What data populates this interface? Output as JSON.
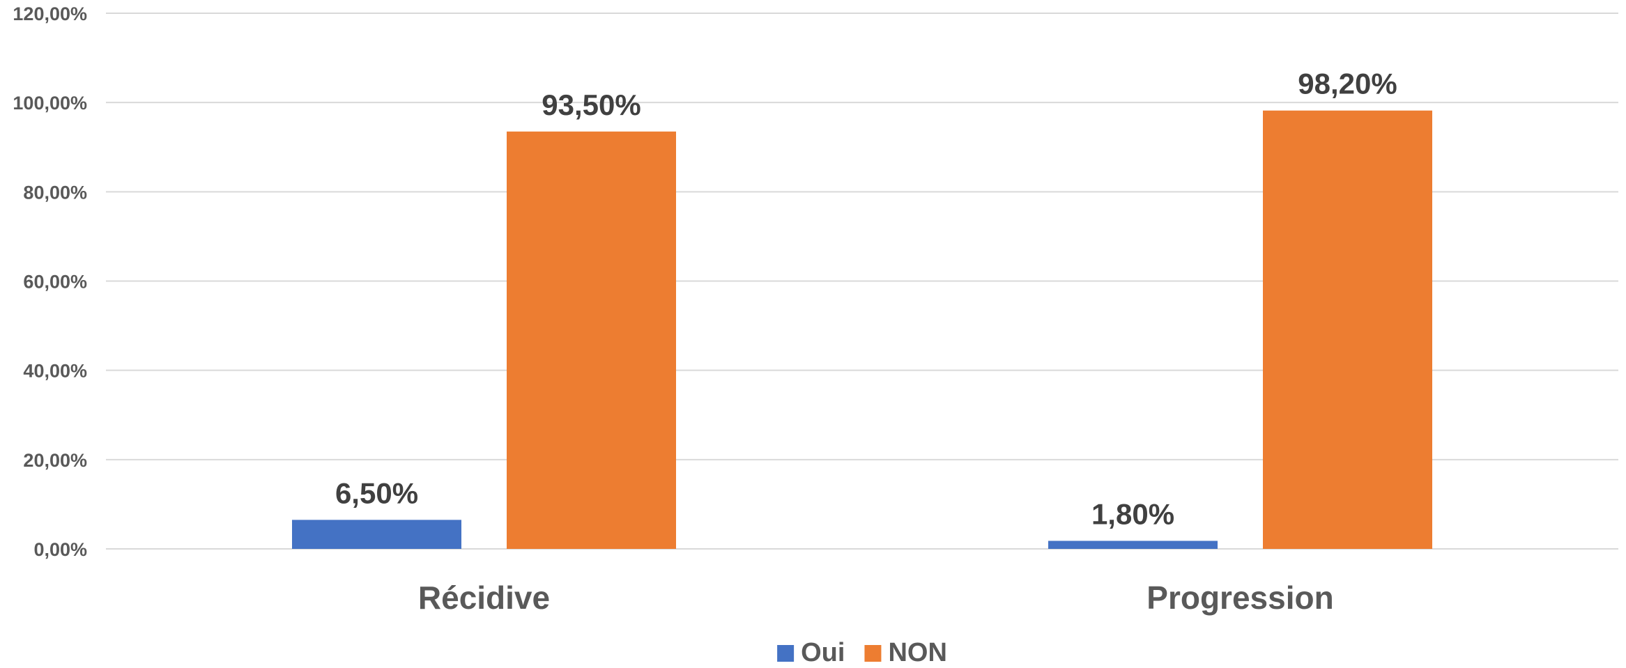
{
  "chart_data": {
    "type": "bar",
    "categories": [
      "Récidive",
      "Progression"
    ],
    "series": [
      {
        "name": "Oui",
        "color": "#4472c4",
        "values": [
          6.5,
          1.8
        ],
        "labels": [
          "6,50%",
          "1,80%"
        ]
      },
      {
        "name": "NON",
        "color": "#ed7d31",
        "values": [
          93.5,
          98.2
        ],
        "labels": [
          "93,50%",
          "98,20%"
        ]
      }
    ],
    "ylim": [
      0,
      120
    ],
    "yticks": [
      0,
      20,
      40,
      60,
      80,
      100,
      120
    ],
    "ytick_labels": [
      "0,00%",
      "20,00%",
      "40,00%",
      "60,00%",
      "80,00%",
      "100,00%",
      "120,00%"
    ],
    "grid": true,
    "legend_position": "bottom",
    "title": "",
    "xlabel": "",
    "ylabel": ""
  }
}
